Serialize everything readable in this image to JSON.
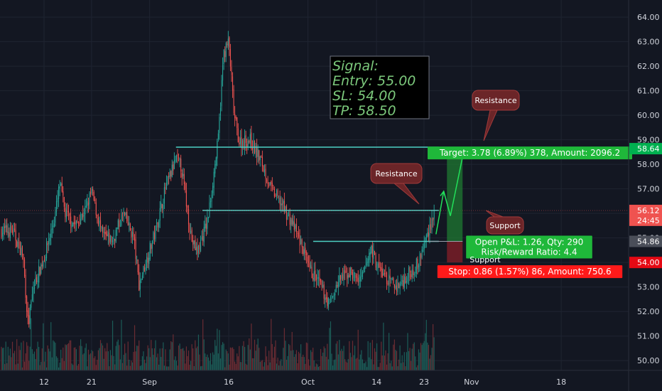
{
  "chart_data": {
    "type": "candlestick",
    "y_range": [
      49.6,
      64.7
    ],
    "y_ticks": [
      "64.00",
      "63.00",
      "62.00",
      "61.00",
      "60.00",
      "59.00",
      "58.00",
      "57.00",
      "56.00",
      "55.00",
      "54.00",
      "53.00",
      "52.00",
      "51.00",
      "50.00"
    ],
    "x_ticks": [
      "12",
      "21",
      "Sep",
      "16",
      "Oct",
      "14",
      "23",
      "Nov",
      "18"
    ],
    "price_path": [
      [
        "Aug 6",
        55.3
      ],
      [
        "Aug 8",
        54.3
      ],
      [
        "Aug 9",
        51.4
      ],
      [
        "Aug 10",
        53.0
      ],
      [
        "Aug 12",
        54.2
      ],
      [
        "Aug 14",
        55.8
      ],
      [
        "Aug 15",
        57.2
      ],
      [
        "Aug 16",
        56.0
      ],
      [
        "Aug 18",
        55.5
      ],
      [
        "Aug 20",
        56.2
      ],
      [
        "Aug 21",
        56.9
      ],
      [
        "Aug 23",
        55.1
      ],
      [
        "Aug 25",
        54.9
      ],
      [
        "Aug 27",
        56.0
      ],
      [
        "Aug 29",
        55.0
      ],
      [
        "Aug 30",
        53.1
      ],
      [
        "Sep 2",
        55.2
      ],
      [
        "Sep 4",
        57.0
      ],
      [
        "Sep 6",
        58.2
      ],
      [
        "Sep 7",
        57.9
      ],
      [
        "Sep 9",
        54.9
      ],
      [
        "Sep 10",
        54.4
      ],
      [
        "Sep 12",
        55.7
      ],
      [
        "Sep 14",
        59.0
      ],
      [
        "Sep 15",
        62.5
      ],
      [
        "Sep 16",
        63.0
      ],
      [
        "Sep 17",
        60.0
      ],
      [
        "Sep 18",
        58.9
      ],
      [
        "Sep 20",
        59.0
      ],
      [
        "Sep 22",
        58.2
      ],
      [
        "Sep 24",
        57.0
      ],
      [
        "Sep 26",
        56.4
      ],
      [
        "Sep 28",
        55.6
      ],
      [
        "Sep 30",
        54.6
      ],
      [
        "Oct 1",
        53.8
      ],
      [
        "Oct 3",
        53.2
      ],
      [
        "Oct 5",
        52.3
      ],
      [
        "Oct 7",
        53.3
      ],
      [
        "Oct 9",
        53.6
      ],
      [
        "Oct 11",
        53.2
      ],
      [
        "Oct 13",
        54.6
      ],
      [
        "Oct 14",
        53.9
      ],
      [
        "Oct 16",
        53.3
      ],
      [
        "Oct 18",
        53.0
      ],
      [
        "Oct 20",
        53.5
      ],
      [
        "Oct 22",
        54.0
      ],
      [
        "Oct 24",
        55.4
      ],
      [
        "Oct 25",
        56.1
      ]
    ],
    "horizontal_lines": [
      {
        "label": "Resistance",
        "value": 58.7
      },
      {
        "label": "Resistance",
        "value": 56.12
      },
      {
        "label": "Support",
        "value": 54.86
      }
    ],
    "position": {
      "entry": 54.86,
      "target": 58.64,
      "stop": 54.0,
      "target_label": "Target: 3.78 (6.89%) 378, Amount: 2096.2",
      "stop_label": "Stop: 0.86 (1.57%) 86, Amount: 750.6",
      "pnl_label": "Open P&L: 1.26, Qty: 290",
      "rr_label": "Risk/Reward Ratio: 4.4"
    },
    "price_badges": [
      {
        "text": "58.64",
        "value": 58.64,
        "bg": "#00b050",
        "fg": "#ffffff"
      },
      {
        "text": "56.12",
        "value": 56.12,
        "bg": "#ef5350",
        "fg": "#ffffff"
      },
      {
        "text": "24:45",
        "value": 55.72,
        "bg": "#ef5350",
        "fg": "#ffffff"
      },
      {
        "text": "54.86",
        "value": 54.86,
        "bg": "#4a4e59",
        "fg": "#ffffff"
      },
      {
        "text": "54.00",
        "value": 54.0,
        "bg": "#e50914",
        "fg": "#ffffff"
      }
    ]
  },
  "annotations": {
    "signal": [
      "Signal:",
      "Entry: 55.00",
      "SL: 54.00",
      "TP: 58.50"
    ],
    "notes": [
      "Resistance",
      "Resistance",
      "Support",
      "Support"
    ]
  },
  "colors": {
    "background": "#131722",
    "up": "#26a69a",
    "down": "#ef5350",
    "level_line": "#4dd0c4",
    "target": "#00b050",
    "stop": "#e50914"
  }
}
